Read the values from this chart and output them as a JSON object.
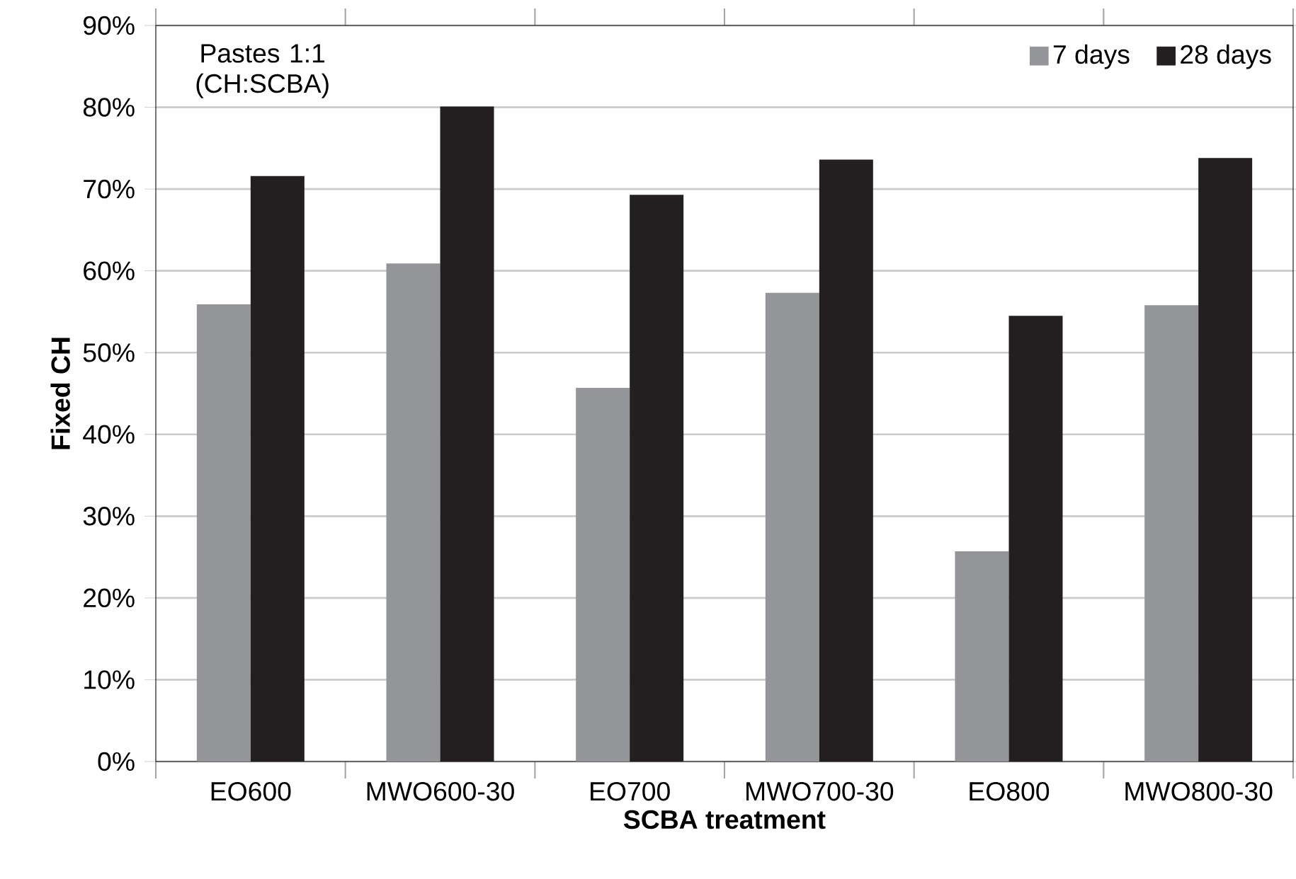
{
  "chart_data": {
    "type": "bar",
    "xlabel": "SCBA treatment",
    "ylabel": "Fixed CH",
    "categories": [
      "EO600",
      "MWO600-30",
      "EO700",
      "MWO700-30",
      "EO800",
      "MWO800-30"
    ],
    "series": [
      {
        "name": "7 days",
        "color": "#939598",
        "values": [
          55.9,
          60.9,
          45.7,
          57.3,
          25.7,
          55.8
        ]
      },
      {
        "name": "28 days",
        "color": "#231f20",
        "values": [
          71.6,
          80.1,
          69.3,
          73.6,
          54.5,
          73.8
        ]
      }
    ],
    "ylim": [
      0,
      90
    ],
    "yticks": [
      {
        "value": 0,
        "label": "0%"
      },
      {
        "value": 10,
        "label": "10%"
      },
      {
        "value": 20,
        "label": "20%"
      },
      {
        "value": 30,
        "label": "30%"
      },
      {
        "value": 40,
        "label": "40%"
      },
      {
        "value": 50,
        "label": "50%"
      },
      {
        "value": 60,
        "label": "60%"
      },
      {
        "value": 70,
        "label": "70%"
      },
      {
        "value": 80,
        "label": "80%"
      },
      {
        "value": 90,
        "label": "90%"
      }
    ],
    "grid": "y",
    "legend": "top right",
    "annotations": [
      "Pastes 1:1 (CH:SCBA)"
    ]
  }
}
